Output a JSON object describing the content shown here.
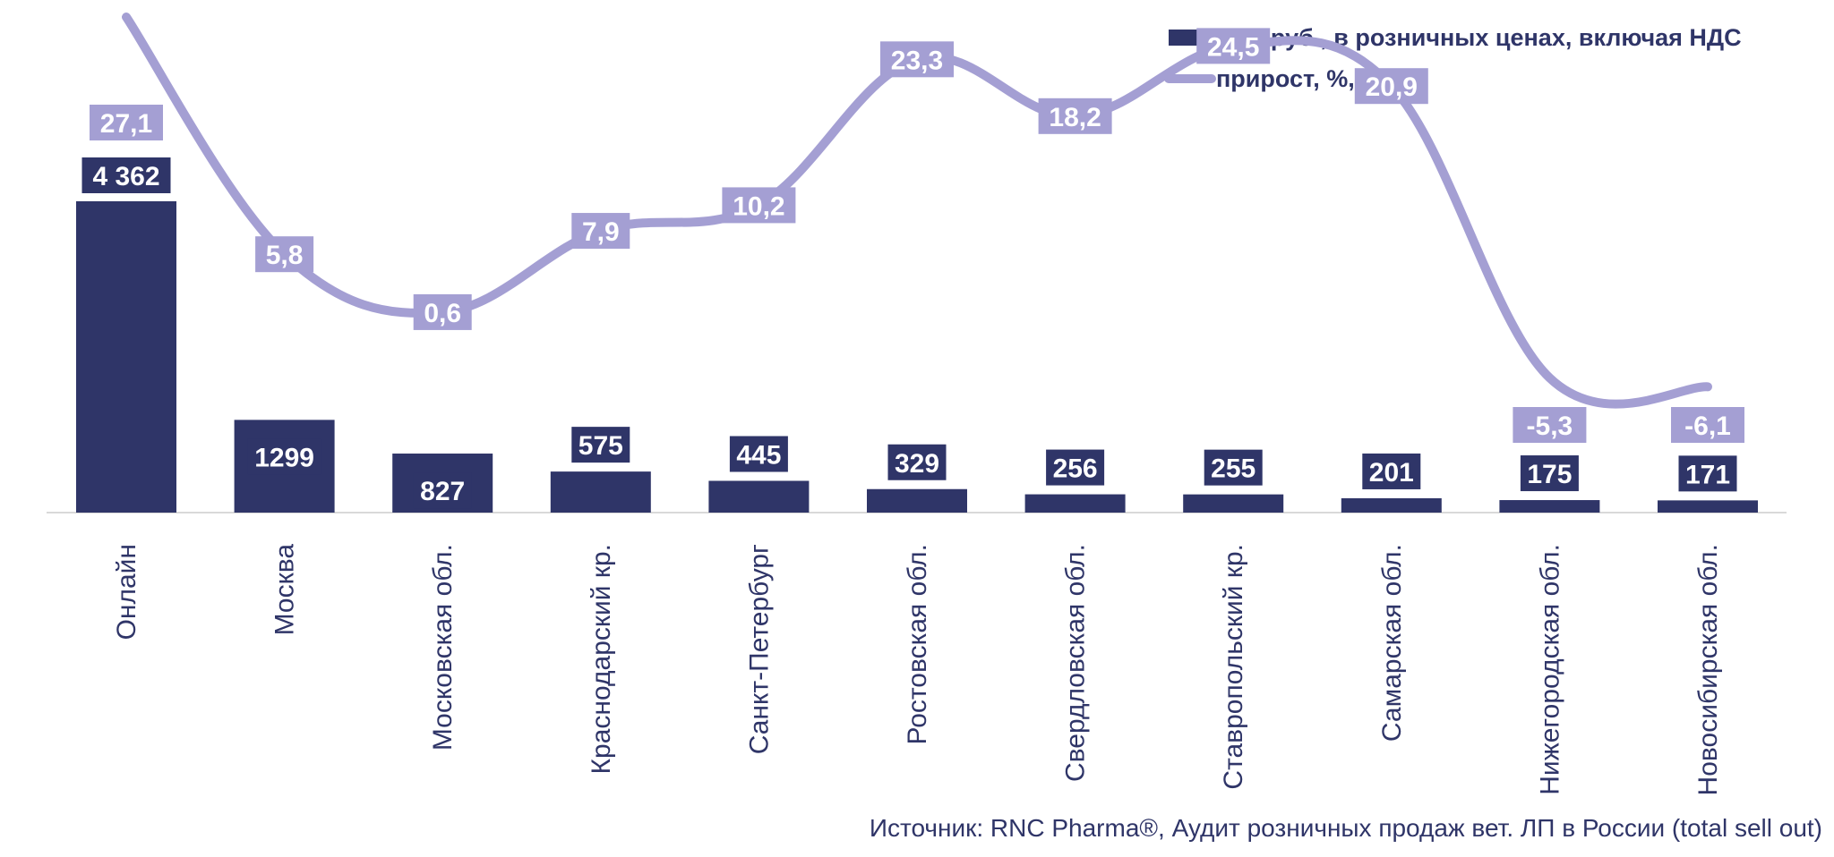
{
  "chart_data": {
    "type": "bar",
    "categories": [
      "Онлайн",
      "Москва",
      "Московская обл.",
      "Краснодарский кр.",
      "Санкт-Петербург",
      "Ростовская обл.",
      "Свердловская обл.",
      "Ставропольский кр.",
      "Самарская обл.",
      "Нижегородская обл.",
      "Новосибирская обл."
    ],
    "series": [
      {
        "name": "млн руб., в розничных ценах, включая НДС",
        "type": "bar",
        "values": [
          4362,
          1299,
          827,
          575,
          445,
          329,
          256,
          255,
          201,
          175,
          171
        ],
        "labels": [
          "4 362",
          "1299",
          "827",
          "575",
          "445",
          "329",
          "256",
          "255",
          "201",
          "175",
          "171"
        ]
      },
      {
        "name": "прирост, %, руб.",
        "type": "line",
        "values": [
          27.1,
          5.8,
          0.6,
          7.9,
          10.2,
          23.3,
          18.2,
          24.5,
          20.9,
          -5.3,
          -6.1
        ],
        "labels": [
          "27,1",
          "5,8",
          "0,6",
          "7,9",
          "10,2",
          "23,3",
          "18,2",
          "24,5",
          "20,9",
          "-5,3",
          "-6,1"
        ]
      }
    ],
    "legend_position": "top-right",
    "grid": false
  },
  "colors": {
    "bar": "#2f3568",
    "line": "#a49fd3",
    "text": "#2f3568",
    "axis": "#d9d9d9"
  },
  "source": "Источник: RNC Pharma®, Аудит розничных продаж вет. ЛП в России (total sell out)"
}
